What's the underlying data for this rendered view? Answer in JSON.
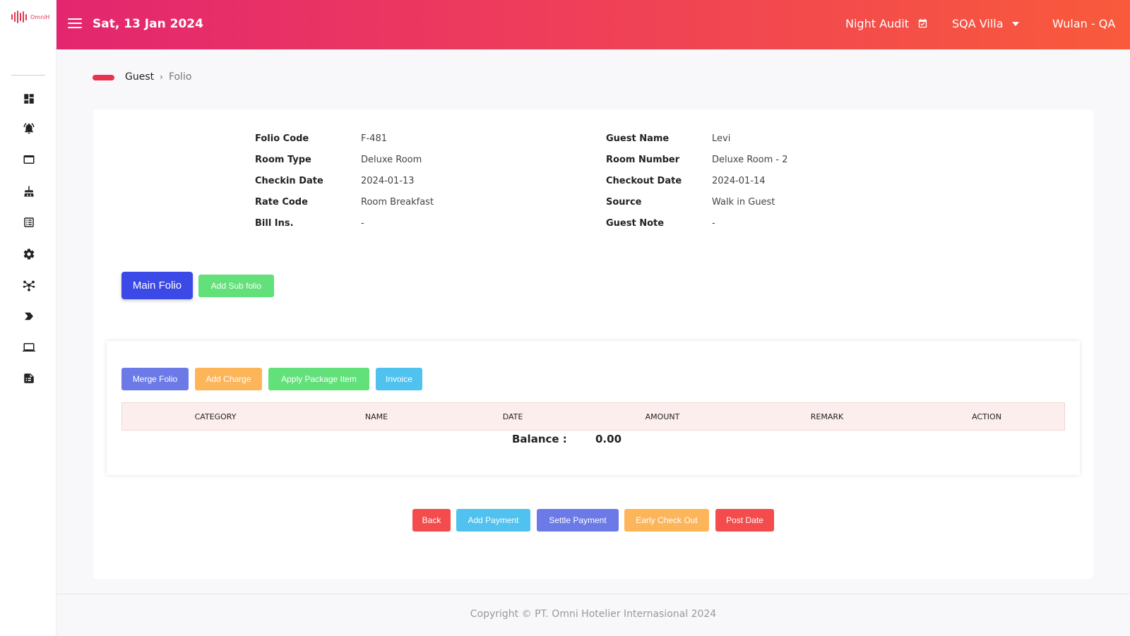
{
  "app": {
    "logo_text": "OmniH"
  },
  "sidebar": {
    "items": [
      {
        "icon": "dashboard-icon"
      },
      {
        "icon": "bell-icon"
      },
      {
        "icon": "window-icon"
      },
      {
        "icon": "broom-icon"
      },
      {
        "icon": "list-icon"
      },
      {
        "icon": "gear-icon"
      },
      {
        "icon": "network-icon"
      },
      {
        "icon": "tag-icon"
      },
      {
        "icon": "laptop-icon"
      },
      {
        "icon": "report-icon"
      }
    ]
  },
  "header": {
    "date": "Sat, 13 Jan 2024",
    "night_audit": "Night Audit",
    "property": "SQA Villa",
    "user": "Wulan - QA"
  },
  "breadcrumb": {
    "home": "Guest",
    "separator": "›",
    "current": "Folio"
  },
  "folio": {
    "left": [
      {
        "label": "Folio Code",
        "value": "F-481"
      },
      {
        "label": "Room Type",
        "value": "Deluxe Room"
      },
      {
        "label": "Checkin Date",
        "value": "2024-01-13"
      },
      {
        "label": "Rate Code",
        "value": "Room Breakfast"
      },
      {
        "label": "Bill Ins.",
        "value": "-"
      }
    ],
    "right": [
      {
        "label": "Guest Name",
        "value": "Levi"
      },
      {
        "label": "Room Number",
        "value": "Deluxe Room - 2"
      },
      {
        "label": "Checkout Date",
        "value": "2024-01-14"
      },
      {
        "label": "Source",
        "value": "Walk in Guest"
      },
      {
        "label": "Guest Note",
        "value": "-"
      }
    ]
  },
  "folio_tabs": {
    "main": "Main Folio",
    "add_sub": "Add Sub folio"
  },
  "actions": {
    "merge": "Merge Folio",
    "add_charge": "Add Charge",
    "apply_package": "Apply Package Item",
    "invoice": "Invoice"
  },
  "table": {
    "columns": [
      "CATEGORY",
      "NAME",
      "DATE",
      "AMOUNT",
      "REMARK",
      "ACTION"
    ],
    "rows": []
  },
  "balance": {
    "label": "Balance :",
    "value": "0.00"
  },
  "bottom_actions": {
    "back": "Back",
    "add_payment": "Add Payment",
    "settle_payment": "Settle Payment",
    "early_checkout": "Early Check Out",
    "post_date": "Post Date"
  },
  "colors": {
    "primary": "#3b4ae6",
    "indigo": "#6c7ae8",
    "success": "#62e07a",
    "warning": "#fdb55a",
    "info": "#4fc2ef",
    "danger": "#f44c4c",
    "header_start": "#e3266f",
    "header_end": "#f95a3b"
  },
  "footer": {
    "copyright": "Copyright © PT. Omni Hotelier Internasional 2024"
  }
}
